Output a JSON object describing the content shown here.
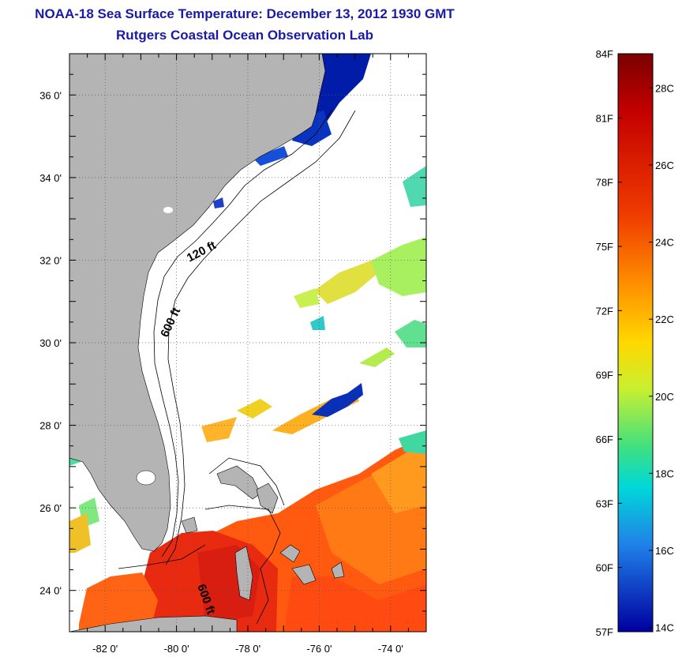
{
  "title": "NOAA-18 Sea Surface Temperature:  December 13, 2012 1930 GMT",
  "subtitle": "Rutgers Coastal Ocean Observation Lab",
  "map": {
    "lon_min": -83.0,
    "lon_max": -73.0,
    "lat_min": 23.0,
    "lat_max": 37.0,
    "lon_ticks": [
      -82,
      -80,
      -78,
      -76,
      -74
    ],
    "lon_tick_labels": [
      "-82 0'",
      "-80 0'",
      "-78 0'",
      "-76 0'",
      "-74 0'"
    ],
    "lat_ticks": [
      24,
      26,
      28,
      30,
      32,
      34,
      36
    ],
    "lat_tick_labels": [
      "24 0'",
      "26 0'",
      "28 0'",
      "30 0'",
      "32 0'",
      "34 0'",
      "36 0'"
    ],
    "contour_labels": [
      "120 ft",
      "600 ft",
      "600 ft"
    ],
    "land_color": "#b4b4b4",
    "grid": true
  },
  "colorbar": {
    "f_labels": [
      "84F",
      "81F",
      "78F",
      "75F",
      "72F",
      "69F",
      "66F",
      "63F",
      "60F",
      "57F"
    ],
    "c_labels": [
      "28C",
      "26C",
      "24C",
      "22C",
      "20C",
      "18C",
      "16C",
      "14C"
    ],
    "f_min": 57,
    "f_max": 84,
    "c_values": [
      28,
      26,
      24,
      22,
      20,
      18,
      16,
      14
    ],
    "f_values": [
      84,
      81,
      78,
      75,
      72,
      69,
      66,
      63,
      60,
      57
    ]
  }
}
